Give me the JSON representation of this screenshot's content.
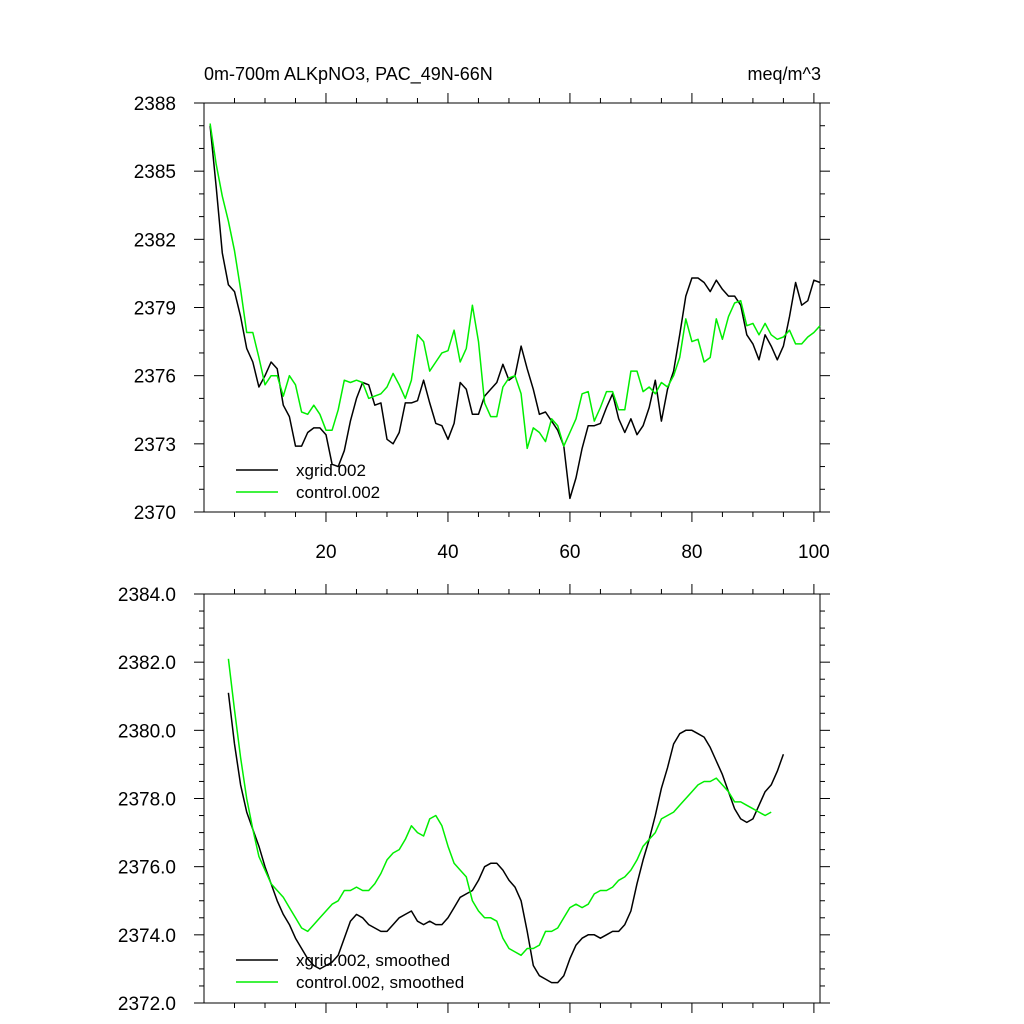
{
  "chart_data": [
    {
      "type": "line",
      "title": "0m-700m ALKpNO3, PAC_49N-66N",
      "units": "meq/m^3",
      "xlim": [
        0,
        101
      ],
      "ylim": [
        2370,
        2388
      ],
      "xticks": [
        20,
        40,
        60,
        80,
        100
      ],
      "xtick_labels": [
        "20",
        "40",
        "60",
        "80",
        "100"
      ],
      "yticks": [
        2370,
        2373,
        2376,
        2379,
        2382,
        2385,
        2388
      ],
      "ytick_labels": [
        "2370",
        "2373",
        "2376",
        "2379",
        "2382",
        "2385",
        "2388"
      ],
      "legend_position": "bottom-left",
      "series": [
        {
          "name": "xgrid.002",
          "color": "#000000",
          "x_start": 1,
          "values": [
            2387.0,
            2384.3,
            2381.4,
            2380.0,
            2379.7,
            2378.6,
            2377.2,
            2376.6,
            2375.5,
            2376.0,
            2376.6,
            2376.3,
            2374.7,
            2374.2,
            2372.9,
            2372.9,
            2373.5,
            2373.7,
            2373.7,
            2373.4,
            2372.1,
            2372.0,
            2372.7,
            2374.0,
            2375.0,
            2375.7,
            2375.6,
            2374.7,
            2374.8,
            2373.2,
            2373.0,
            2373.5,
            2374.8,
            2374.8,
            2374.9,
            2375.8,
            2374.8,
            2373.9,
            2373.8,
            2373.2,
            2373.9,
            2375.7,
            2375.4,
            2374.3,
            2374.3,
            2375.1,
            2375.4,
            2375.7,
            2376.5,
            2375.8,
            2376.0,
            2377.3,
            2376.3,
            2375.4,
            2374.3,
            2374.4,
            2374.0,
            2373.6,
            2372.9,
            2370.6,
            2371.5,
            2372.8,
            2373.8,
            2373.8,
            2373.9,
            2374.6,
            2375.2,
            2374.1,
            2373.5,
            2374.1,
            2373.4,
            2373.8,
            2374.6,
            2375.8,
            2374.0,
            2375.4,
            2376.2,
            2377.8,
            2379.5,
            2380.3,
            2380.3,
            2380.1,
            2379.7,
            2380.2,
            2379.8,
            2379.5,
            2379.5,
            2379.1,
            2377.8,
            2377.4,
            2376.7,
            2377.8,
            2377.3,
            2376.7,
            2377.3,
            2378.6,
            2380.1,
            2379.1,
            2379.3,
            2380.2,
            2380.1
          ]
        },
        {
          "name": "control.002",
          "color": "#00ee00",
          "x_start": 1,
          "values": [
            2387.1,
            2385.3,
            2383.9,
            2382.8,
            2381.5,
            2379.8,
            2377.9,
            2377.9,
            2376.8,
            2375.6,
            2376.0,
            2376.0,
            2375.1,
            2376.0,
            2375.6,
            2374.4,
            2374.3,
            2374.7,
            2374.3,
            2373.6,
            2373.6,
            2374.5,
            2375.8,
            2375.7,
            2375.8,
            2375.7,
            2375.0,
            2375.1,
            2375.2,
            2375.5,
            2376.1,
            2375.6,
            2375.0,
            2375.8,
            2377.8,
            2377.5,
            2376.2,
            2376.6,
            2377.0,
            2377.1,
            2378.0,
            2376.6,
            2377.2,
            2379.1,
            2377.5,
            2374.8,
            2374.2,
            2374.2,
            2375.5,
            2375.9,
            2376.0,
            2375.2,
            2372.8,
            2373.7,
            2373.5,
            2373.1,
            2374.1,
            2373.8,
            2372.9,
            2373.5,
            2374.1,
            2375.2,
            2375.3,
            2374.0,
            2374.6,
            2375.3,
            2375.3,
            2374.5,
            2374.5,
            2376.2,
            2376.2,
            2375.3,
            2375.5,
            2375.2,
            2375.7,
            2375.5,
            2376.0,
            2376.8,
            2378.5,
            2377.5,
            2377.6,
            2376.6,
            2376.8,
            2378.5,
            2377.6,
            2378.6,
            2379.2,
            2379.3,
            2378.2,
            2378.3,
            2377.8,
            2378.3,
            2377.8,
            2377.6,
            2377.7,
            2378.0,
            2377.4,
            2377.4,
            2377.7,
            2377.9,
            2378.2
          ]
        }
      ]
    },
    {
      "type": "line",
      "title": "",
      "xlim": [
        0,
        101
      ],
      "ylim": [
        2372,
        2384
      ],
      "xticks": [
        20,
        40,
        60,
        80,
        100
      ],
      "yticks": [
        2372,
        2374,
        2376,
        2378,
        2380,
        2382,
        2384
      ],
      "ytick_labels": [
        "2372.0",
        "2374.0",
        "2376.0",
        "2378.0",
        "2380.0",
        "2382.0",
        "2384.0"
      ],
      "legend_position": "bottom-left",
      "series": [
        {
          "name": "xgrid.002, smoothed",
          "color": "#000000",
          "x_start": 4,
          "values": [
            2381.1,
            2379.6,
            2378.4,
            2377.6,
            2377.1,
            2376.6,
            2376.0,
            2375.5,
            2375.0,
            2374.6,
            2374.3,
            2373.9,
            2373.6,
            2373.3,
            2373.1,
            2373.0,
            2373.1,
            2373.2,
            2373.4,
            2373.9,
            2374.4,
            2374.6,
            2374.5,
            2374.3,
            2374.2,
            2374.1,
            2374.1,
            2374.3,
            2374.5,
            2374.6,
            2374.7,
            2374.4,
            2374.3,
            2374.4,
            2374.3,
            2374.3,
            2374.5,
            2374.8,
            2375.1,
            2375.2,
            2375.3,
            2375.6,
            2376.0,
            2376.1,
            2376.1,
            2375.9,
            2375.6,
            2375.4,
            2375.0,
            2374.1,
            2373.1,
            2372.8,
            2372.7,
            2372.6,
            2372.6,
            2372.8,
            2373.3,
            2373.7,
            2373.9,
            2374.0,
            2374.0,
            2373.9,
            2374.0,
            2374.1,
            2374.1,
            2374.3,
            2374.7,
            2375.5,
            2376.2,
            2376.8,
            2377.5,
            2378.3,
            2378.9,
            2379.6,
            2379.9,
            2380.0,
            2380.0,
            2379.9,
            2379.8,
            2379.5,
            2379.1,
            2378.7,
            2378.2,
            2377.7,
            2377.4,
            2377.3,
            2377.4,
            2377.8,
            2378.2,
            2378.4,
            2378.8,
            2379.3
          ]
        },
        {
          "name": "control.002, smoothed",
          "color": "#00ee00",
          "x_start": 4,
          "values": [
            2382.1,
            2380.6,
            2379.2,
            2378.0,
            2377.1,
            2376.3,
            2375.9,
            2375.5,
            2375.3,
            2375.1,
            2374.8,
            2374.5,
            2374.2,
            2374.1,
            2374.3,
            2374.5,
            2374.7,
            2374.9,
            2375.0,
            2375.3,
            2375.3,
            2375.4,
            2375.3,
            2375.3,
            2375.5,
            2375.8,
            2376.2,
            2376.4,
            2376.5,
            2376.8,
            2377.2,
            2377.0,
            2376.9,
            2377.4,
            2377.5,
            2377.2,
            2376.6,
            2376.1,
            2375.9,
            2375.7,
            2375.0,
            2374.7,
            2374.5,
            2374.5,
            2374.4,
            2373.9,
            2373.6,
            2373.5,
            2373.4,
            2373.6,
            2373.6,
            2373.7,
            2374.1,
            2374.1,
            2374.2,
            2374.5,
            2374.8,
            2374.9,
            2374.8,
            2374.9,
            2375.2,
            2375.3,
            2375.3,
            2375.4,
            2375.6,
            2375.7,
            2375.9,
            2376.2,
            2376.6,
            2376.8,
            2377.0,
            2377.4,
            2377.5,
            2377.6,
            2377.8,
            2378.0,
            2378.2,
            2378.4,
            2378.5,
            2378.5,
            2378.6,
            2378.4,
            2378.2,
            2377.9,
            2377.9,
            2377.8,
            2377.7,
            2377.6,
            2377.5,
            2377.6
          ]
        }
      ]
    }
  ]
}
